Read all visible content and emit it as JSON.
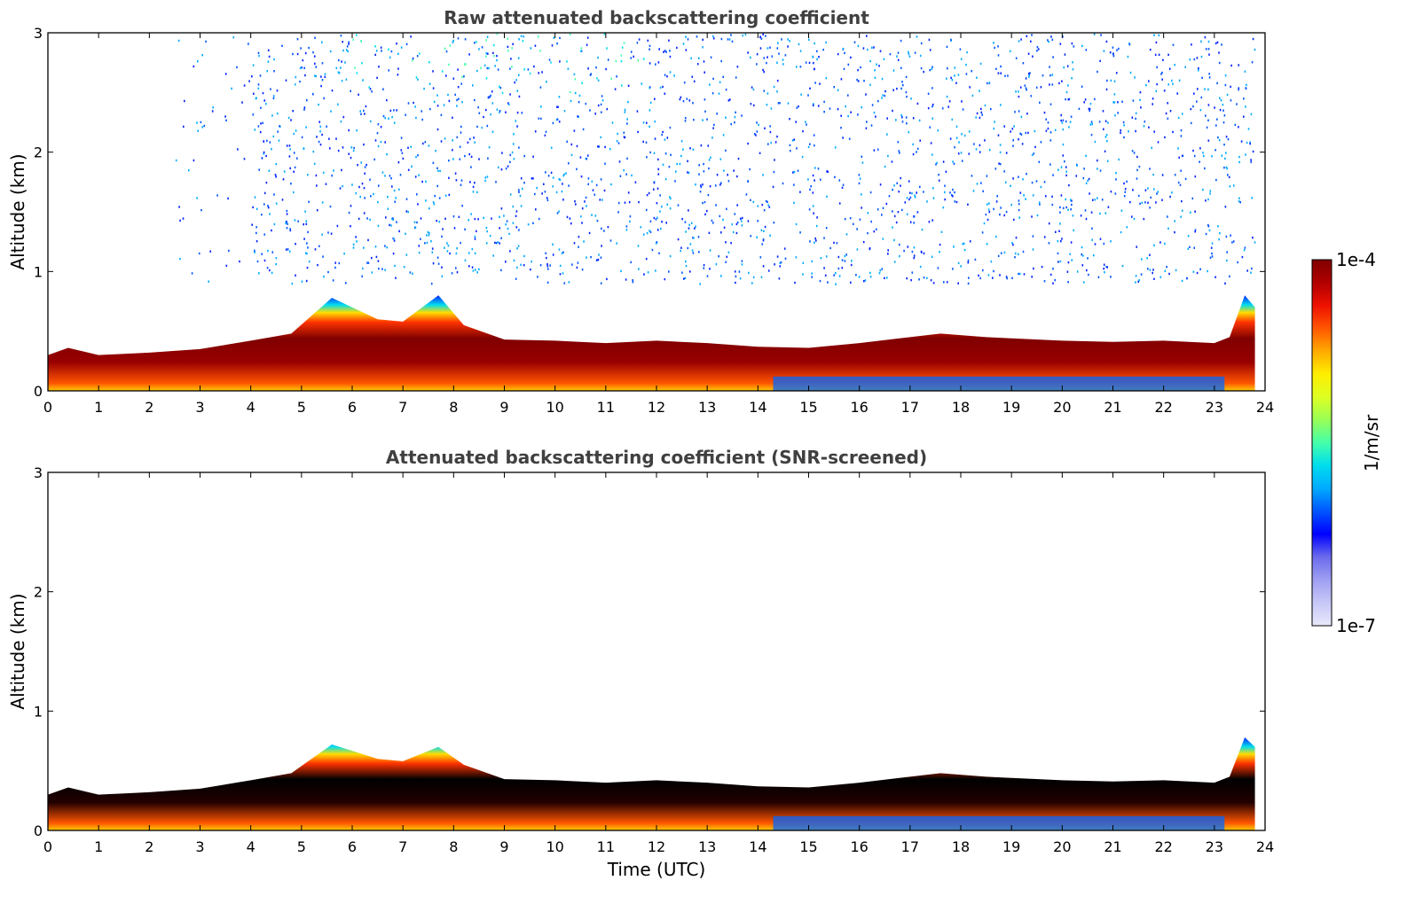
{
  "chart_data": [
    {
      "type": "heatmap",
      "title": "Raw attenuated backscattering coefficient",
      "xlabel": "",
      "ylabel": "Altitude (km)",
      "xlim": [
        0,
        24
      ],
      "ylim": [
        0,
        3
      ],
      "x_ticks": [
        "0",
        "1",
        "2",
        "3",
        "4",
        "5",
        "6",
        "7",
        "8",
        "9",
        "10",
        "11",
        "12",
        "13",
        "14",
        "15",
        "16",
        "17",
        "18",
        "19",
        "20",
        "21",
        "22",
        "23",
        "24"
      ],
      "y_ticks": [
        "0",
        "1",
        "2",
        "3"
      ],
      "layer_top_km": {
        "x": [
          0,
          0.4,
          1,
          2,
          3,
          4,
          4.8,
          5.6,
          6.5,
          7,
          7.7,
          8.2,
          9,
          10,
          11,
          12,
          13,
          14,
          15,
          16,
          17,
          17.6,
          18.5,
          19,
          20,
          21,
          22,
          23,
          23.3,
          23.6,
          23.8
        ],
        "y": [
          0.3,
          0.36,
          0.3,
          0.32,
          0.35,
          0.42,
          0.48,
          0.78,
          0.6,
          0.58,
          0.8,
          0.55,
          0.43,
          0.42,
          0.4,
          0.42,
          0.4,
          0.37,
          0.36,
          0.4,
          0.45,
          0.48,
          0.45,
          0.44,
          0.42,
          0.41,
          0.42,
          0.4,
          0.45,
          0.8,
          0.7
        ]
      },
      "noise_above_layer": true
    },
    {
      "type": "heatmap",
      "title": "Attenuated backscattering coefficient (SNR-screened)",
      "xlabel": "Time (UTC)",
      "ylabel": "Altitude (km)",
      "xlim": [
        0,
        24
      ],
      "ylim": [
        0,
        3
      ],
      "x_ticks": [
        "0",
        "1",
        "2",
        "3",
        "4",
        "5",
        "6",
        "7",
        "8",
        "9",
        "10",
        "11",
        "12",
        "13",
        "14",
        "15",
        "16",
        "17",
        "18",
        "19",
        "20",
        "21",
        "22",
        "23",
        "24"
      ],
      "y_ticks": [
        "0",
        "1",
        "2",
        "3"
      ],
      "layer_top_km": {
        "x": [
          0,
          0.4,
          1,
          2,
          3,
          4,
          4.8,
          5.6,
          6.5,
          7,
          7.7,
          8.2,
          9,
          10,
          11,
          12,
          13,
          14,
          15,
          16,
          17,
          17.6,
          18.5,
          19,
          20,
          21,
          22,
          23,
          23.3,
          23.6,
          23.8
        ],
        "y": [
          0.3,
          0.36,
          0.3,
          0.32,
          0.35,
          0.42,
          0.48,
          0.72,
          0.6,
          0.58,
          0.7,
          0.55,
          0.43,
          0.42,
          0.4,
          0.42,
          0.4,
          0.37,
          0.36,
          0.4,
          0.45,
          0.48,
          0.45,
          0.44,
          0.42,
          0.41,
          0.42,
          0.4,
          0.45,
          0.78,
          0.7
        ]
      },
      "noise_above_layer": false
    }
  ],
  "colorbar": {
    "label": "1/m/sr",
    "max_label": "1e-4",
    "min_label": "1e-7",
    "colors": [
      "#e8e8fb",
      "#c7c7f7",
      "#9f9ff2",
      "#6b6bed",
      "#0000ff",
      "#0055ff",
      "#00aaff",
      "#00ddee",
      "#44ffaa",
      "#99ff55",
      "#ddff22",
      "#ffee00",
      "#ffaa00",
      "#ff5500",
      "#ee1100",
      "#b00000",
      "#800000"
    ]
  },
  "colors": {
    "axis": "#000000",
    "title": "#404040",
    "saturated_core_raw": "#800000",
    "saturated_core_screened": "#000000"
  }
}
